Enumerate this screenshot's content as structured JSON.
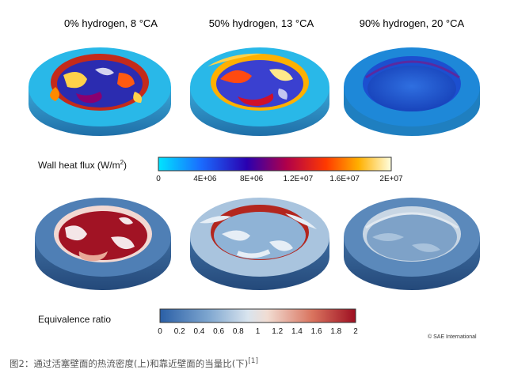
{
  "columns": [
    {
      "title": "0% hydrogen, 8 °CA"
    },
    {
      "title": "50% hydrogen, 13 °CA"
    },
    {
      "title": "90% hydrogen, 20 °CA"
    }
  ],
  "heat_flux_bar": {
    "label": "Wall heat flux (W/m",
    "label_sup": "2",
    "label_end": ")",
    "ticks": [
      "0",
      "4E+06",
      "8E+06",
      "1.2E+07",
      "1.6E+07",
      "2E+07"
    ]
  },
  "equivalence_bar": {
    "label": "Equivalence ratio",
    "ticks": [
      "0",
      "0.2",
      "0.4",
      "0.6",
      "0.8",
      "1",
      "1.2",
      "1.4",
      "1.6",
      "1.8",
      "2"
    ]
  },
  "credit": "© SAE International",
  "caption": {
    "text": "图2：通过活塞壁面的热流密度(上)和靠近壁面的当量比(下)",
    "ref": "[1]"
  }
}
